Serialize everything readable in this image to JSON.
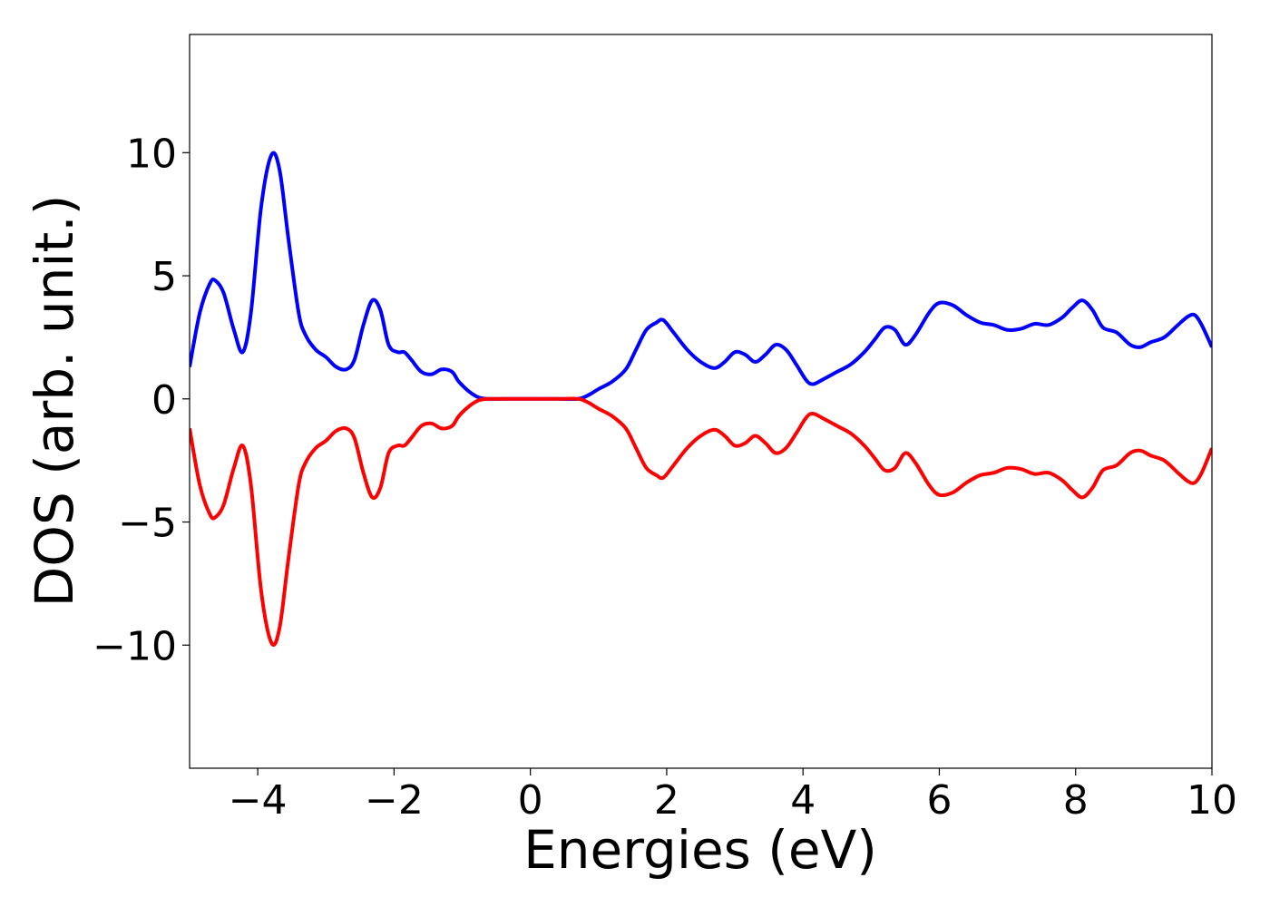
{
  "chart_data": {
    "type": "line",
    "title": "",
    "xlabel": "Energies (eV)",
    "ylabel": "DOS (arb. unit.)",
    "xlim": [
      -5,
      10
    ],
    "ylim": [
      -15,
      14.8
    ],
    "xticks": [
      -4,
      -2,
      0,
      2,
      4,
      6,
      8,
      10
    ],
    "xtick_labels": [
      "−4",
      "−2",
      "0",
      "2",
      "4",
      "6",
      "8",
      "10"
    ],
    "yticks": [
      -10,
      -5,
      0,
      5,
      10
    ],
    "ytick_labels": [
      "−10",
      "−5",
      "0",
      "5",
      "10"
    ],
    "grid": false,
    "legend": "none",
    "series": [
      {
        "color": "#0000ff",
        "x": [
          -5.0,
          -4.85,
          -4.7,
          -4.62,
          -4.5,
          -4.35,
          -4.22,
          -4.1,
          -3.95,
          -3.8,
          -3.68,
          -3.55,
          -3.4,
          -3.3,
          -3.15,
          -3.0,
          -2.85,
          -2.7,
          -2.58,
          -2.45,
          -2.32,
          -2.2,
          -2.08,
          -1.95,
          -1.85,
          -1.75,
          -1.6,
          -1.45,
          -1.3,
          -1.15,
          -1.05,
          -0.9,
          -0.75,
          -0.6,
          -0.4,
          0.0,
          0.4,
          0.7,
          0.85,
          1.0,
          1.2,
          1.4,
          1.55,
          1.7,
          1.85,
          1.95,
          2.1,
          2.3,
          2.5,
          2.7,
          2.85,
          3.0,
          3.15,
          3.3,
          3.45,
          3.6,
          3.75,
          3.9,
          4.05,
          4.15,
          4.3,
          4.5,
          4.7,
          4.9,
          5.05,
          5.2,
          5.35,
          5.5,
          5.65,
          5.85,
          6.0,
          6.2,
          6.4,
          6.6,
          6.8,
          7.0,
          7.2,
          7.4,
          7.6,
          7.8,
          7.95,
          8.1,
          8.25,
          8.4,
          8.6,
          8.8,
          8.95,
          9.1,
          9.3,
          9.5,
          9.65,
          9.75,
          9.85,
          10.0
        ],
        "y": [
          1.3,
          3.5,
          4.7,
          4.8,
          4.3,
          2.8,
          1.9,
          3.5,
          7.8,
          9.9,
          9.3,
          6.5,
          3.5,
          2.6,
          2.0,
          1.7,
          1.3,
          1.2,
          1.6,
          3.0,
          4.0,
          3.6,
          2.2,
          1.9,
          1.9,
          1.6,
          1.1,
          1.0,
          1.2,
          1.1,
          0.7,
          0.3,
          0.05,
          0.0,
          0.0,
          0.0,
          0.0,
          0.0,
          0.15,
          0.4,
          0.7,
          1.2,
          2.0,
          2.8,
          3.1,
          3.2,
          2.7,
          2.0,
          1.5,
          1.25,
          1.5,
          1.9,
          1.8,
          1.5,
          1.8,
          2.2,
          2.0,
          1.4,
          0.75,
          0.6,
          0.8,
          1.1,
          1.4,
          1.9,
          2.4,
          2.9,
          2.8,
          2.2,
          2.6,
          3.5,
          3.9,
          3.8,
          3.4,
          3.1,
          3.0,
          2.8,
          2.85,
          3.05,
          3.0,
          3.3,
          3.7,
          4.0,
          3.6,
          2.9,
          2.7,
          2.2,
          2.1,
          2.3,
          2.5,
          3.0,
          3.35,
          3.4,
          3.0,
          2.1
        ]
      },
      {
        "color": "#ff0000",
        "x": [
          -5.0,
          -4.85,
          -4.7,
          -4.62,
          -4.5,
          -4.35,
          -4.22,
          -4.1,
          -3.95,
          -3.8,
          -3.68,
          -3.55,
          -3.4,
          -3.3,
          -3.15,
          -3.0,
          -2.85,
          -2.7,
          -2.58,
          -2.45,
          -2.32,
          -2.2,
          -2.08,
          -1.95,
          -1.85,
          -1.75,
          -1.6,
          -1.45,
          -1.3,
          -1.15,
          -1.05,
          -0.9,
          -0.75,
          -0.6,
          -0.4,
          0.0,
          0.4,
          0.7,
          0.85,
          1.0,
          1.2,
          1.4,
          1.55,
          1.7,
          1.85,
          1.95,
          2.1,
          2.3,
          2.5,
          2.7,
          2.85,
          3.0,
          3.15,
          3.3,
          3.45,
          3.6,
          3.75,
          3.9,
          4.05,
          4.15,
          4.3,
          4.5,
          4.7,
          4.9,
          5.05,
          5.2,
          5.35,
          5.5,
          5.65,
          5.85,
          6.0,
          6.2,
          6.4,
          6.6,
          6.8,
          7.0,
          7.2,
          7.4,
          7.6,
          7.8,
          7.95,
          8.1,
          8.25,
          8.4,
          8.6,
          8.8,
          8.95,
          9.1,
          9.3,
          9.5,
          9.65,
          9.75,
          9.85,
          10.0
        ],
        "y": [
          -1.2,
          -3.5,
          -4.7,
          -4.8,
          -4.3,
          -2.8,
          -1.9,
          -3.5,
          -7.8,
          -9.9,
          -9.3,
          -6.5,
          -3.5,
          -2.6,
          -2.0,
          -1.7,
          -1.3,
          -1.2,
          -1.6,
          -3.0,
          -4.0,
          -3.6,
          -2.2,
          -1.9,
          -1.9,
          -1.6,
          -1.1,
          -1.0,
          -1.2,
          -1.1,
          -0.7,
          -0.3,
          -0.05,
          0.0,
          0.0,
          0.0,
          0.0,
          0.0,
          -0.15,
          -0.4,
          -0.7,
          -1.2,
          -2.0,
          -2.8,
          -3.1,
          -3.2,
          -2.7,
          -2.0,
          -1.5,
          -1.25,
          -1.5,
          -1.9,
          -1.8,
          -1.5,
          -1.8,
          -2.2,
          -2.0,
          -1.4,
          -0.75,
          -0.6,
          -0.8,
          -1.1,
          -1.4,
          -1.9,
          -2.4,
          -2.9,
          -2.8,
          -2.2,
          -2.6,
          -3.5,
          -3.9,
          -3.8,
          -3.4,
          -3.1,
          -3.0,
          -2.8,
          -2.85,
          -3.05,
          -3.0,
          -3.3,
          -3.7,
          -4.0,
          -3.6,
          -2.9,
          -2.7,
          -2.2,
          -2.1,
          -2.3,
          -2.5,
          -3.0,
          -3.35,
          -3.4,
          -3.0,
          -2.0
        ]
      }
    ]
  }
}
